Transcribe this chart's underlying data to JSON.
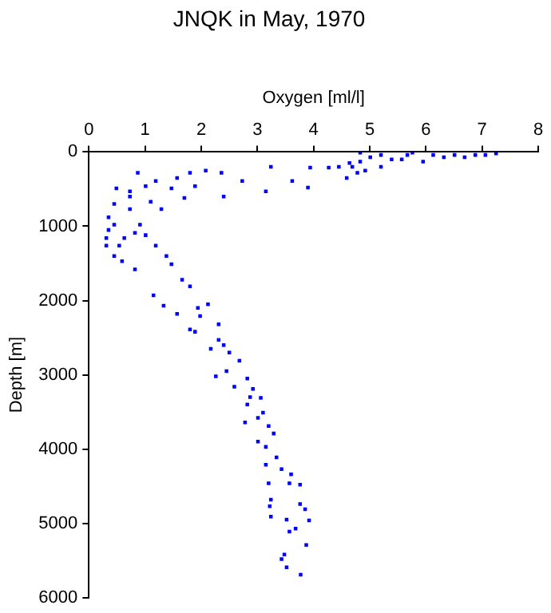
{
  "chart_data": {
    "type": "scatter",
    "title": "JNQK in May, 1970",
    "xlabel": "Oxygen [ml/l]",
    "ylabel": "Depth [m]",
    "xlim": [
      0,
      8
    ],
    "xticks": [
      0,
      1,
      2,
      3,
      4,
      5,
      6,
      7,
      8
    ],
    "ylim": [
      6000,
      0
    ],
    "yticks": [
      0,
      1000,
      2000,
      3000,
      4000,
      5000,
      6000
    ],
    "grid": false,
    "legend": false,
    "marker": "square",
    "series": [
      {
        "color": "#0000ff",
        "x": [
          3.24,
          3.94,
          3.62,
          3.9,
          3.15,
          2.73,
          2.36,
          2.08,
          1.8,
          1.57,
          1.7,
          2.4,
          1.89,
          1.01,
          0.87,
          0.49,
          0.45,
          0.73,
          1.1,
          1.29,
          0.35,
          0.45,
          0.31,
          0.54,
          0.82,
          1.01,
          1.19,
          1.38,
          0.59,
          0.82,
          1.47,
          1.66,
          1.8,
          0.73,
          4.64,
          4.45,
          4.27,
          4.59,
          4.78,
          4.69,
          4.92,
          5.2,
          5.39,
          5.95,
          6.32,
          6.69,
          7.06,
          7.25,
          6.88,
          6.51,
          6.13,
          5.67,
          5.2,
          4.83,
          5.01,
          5.57,
          5.76,
          4.83,
          1.19,
          1.47,
          0.73,
          0.35,
          0.63,
          0.45,
          0.31,
          0.91,
          1.15,
          1.33,
          1.57,
          1.94,
          2.12,
          1.8,
          1.89,
          1.98,
          2.31,
          2.17,
          2.4,
          2.5,
          2.68,
          2.26,
          2.45,
          2.59,
          2.82,
          2.92,
          2.82,
          2.78,
          3.06,
          3.1,
          3.2,
          3.01,
          3.29,
          3.15,
          3.15,
          3.34,
          3.43,
          3.2,
          3.57,
          3.76,
          3.6,
          3.24,
          3.22,
          3.24,
          3.52,
          3.76,
          3.85,
          3.92,
          3.68,
          3.57,
          3.87,
          3.48,
          3.43,
          3.52,
          3.77,
          2.31,
          2.87,
          3.01
        ],
        "values": [
          200,
          210,
          390,
          480,
          530,
          390,
          280,
          250,
          280,
          350,
          620,
          600,
          460,
          460,
          280,
          490,
          700,
          600,
          670,
          770,
          880,
          980,
          1160,
          1260,
          1090,
          1120,
          1260,
          1400,
          1470,
          1580,
          1510,
          1720,
          1810,
          770,
          150,
          200,
          210,
          350,
          280,
          200,
          250,
          200,
          100,
          130,
          70,
          70,
          40,
          20,
          40,
          40,
          40,
          40,
          40,
          10,
          70,
          100,
          10,
          130,
          390,
          490,
          530,
          1050,
          1160,
          1400,
          1260,
          980,
          1930,
          2070,
          2180,
          2100,
          2050,
          2390,
          2420,
          2210,
          2320,
          2650,
          2600,
          2700,
          2810,
          3020,
          2950,
          3160,
          3050,
          3190,
          3400,
          3640,
          3310,
          3510,
          3690,
          3900,
          3790,
          3970,
          4210,
          4110,
          4270,
          4460,
          4460,
          4480,
          4340,
          4680,
          4770,
          4910,
          4950,
          4740,
          4810,
          4960,
          5070,
          5110,
          5290,
          5420,
          5480,
          5590,
          5690,
          2530,
          3300,
          3580
        ]
      }
    ]
  }
}
